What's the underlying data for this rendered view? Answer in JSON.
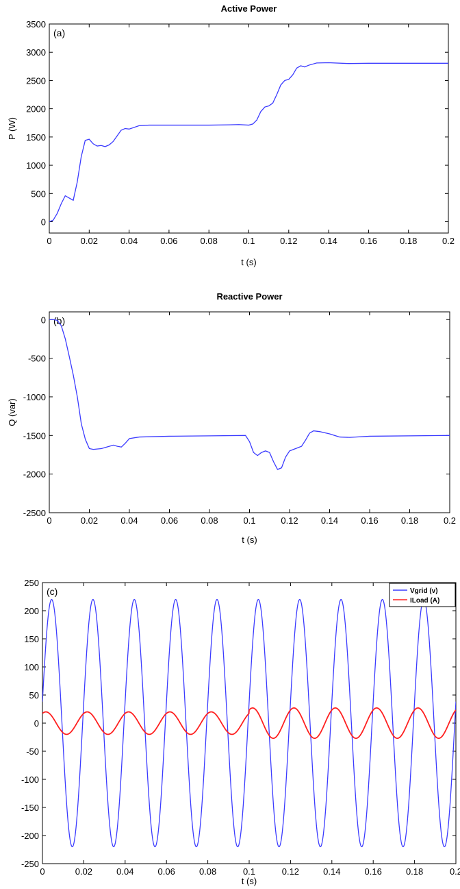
{
  "chart_data": [
    {
      "type": "line",
      "panel_label": "(a)",
      "title": "Active Power",
      "xlabel": "t (s)",
      "ylabel": "P (W)",
      "xlim": [
        0,
        0.2
      ],
      "ylim": [
        -200,
        3500
      ],
      "xticks": [
        0,
        0.02,
        0.04,
        0.06,
        0.08,
        0.1,
        0.12,
        0.14,
        0.16,
        0.18,
        0.2
      ],
      "yticks": [
        0,
        500,
        1000,
        1500,
        2000,
        2500,
        3000,
        3500
      ],
      "grid": false,
      "series": [
        {
          "color": "#3b3bff",
          "x": [
            0,
            0.002,
            0.004,
            0.006,
            0.008,
            0.01,
            0.012,
            0.014,
            0.016,
            0.018,
            0.02,
            0.022,
            0.024,
            0.026,
            0.028,
            0.03,
            0.032,
            0.034,
            0.036,
            0.038,
            0.04,
            0.045,
            0.05,
            0.06,
            0.08,
            0.09,
            0.095,
            0.1,
            0.102,
            0.104,
            0.106,
            0.108,
            0.11,
            0.112,
            0.114,
            0.116,
            0.118,
            0.12,
            0.122,
            0.124,
            0.126,
            0.128,
            0.13,
            0.134,
            0.14,
            0.15,
            0.16,
            0.2
          ],
          "y": [
            0,
            30,
            150,
            320,
            460,
            420,
            380,
            700,
            1150,
            1440,
            1460,
            1380,
            1340,
            1350,
            1330,
            1360,
            1420,
            1520,
            1620,
            1650,
            1640,
            1700,
            1710,
            1710,
            1710,
            1715,
            1720,
            1710,
            1730,
            1800,
            1950,
            2030,
            2050,
            2100,
            2250,
            2420,
            2500,
            2520,
            2600,
            2720,
            2760,
            2740,
            2770,
            2810,
            2815,
            2800,
            2805,
            2805
          ]
        }
      ]
    },
    {
      "type": "line",
      "panel_label": "(b)",
      "title": "Reactive Power",
      "xlabel": "t (s)",
      "ylabel": "Q (var)",
      "xlim": [
        0,
        0.2
      ],
      "ylim": [
        -2500,
        100
      ],
      "xticks": [
        0,
        0.02,
        0.04,
        0.06,
        0.08,
        0.1,
        0.12,
        0.14,
        0.16,
        0.18,
        0.2
      ],
      "yticks": [
        0,
        -500,
        -1000,
        -1500,
        -2000,
        -2500
      ],
      "grid": false,
      "series": [
        {
          "color": "#3b3bff",
          "x": [
            0,
            0.002,
            0.004,
            0.006,
            0.008,
            0.01,
            0.012,
            0.014,
            0.016,
            0.018,
            0.02,
            0.022,
            0.026,
            0.03,
            0.032,
            0.034,
            0.036,
            0.038,
            0.04,
            0.045,
            0.06,
            0.08,
            0.098,
            0.1,
            0.102,
            0.104,
            0.106,
            0.108,
            0.11,
            0.112,
            0.114,
            0.116,
            0.118,
            0.12,
            0.122,
            0.124,
            0.126,
            0.128,
            0.13,
            0.132,
            0.135,
            0.14,
            0.145,
            0.15,
            0.16,
            0.2
          ],
          "y": [
            0,
            0,
            -10,
            -80,
            -250,
            -480,
            -720,
            -1000,
            -1350,
            -1550,
            -1670,
            -1680,
            -1670,
            -1640,
            -1625,
            -1640,
            -1650,
            -1600,
            -1540,
            -1520,
            -1510,
            -1505,
            -1500,
            -1580,
            -1720,
            -1760,
            -1720,
            -1700,
            -1720,
            -1840,
            -1940,
            -1920,
            -1780,
            -1700,
            -1680,
            -1660,
            -1640,
            -1560,
            -1470,
            -1440,
            -1450,
            -1480,
            -1520,
            -1525,
            -1510,
            -1500
          ]
        }
      ]
    },
    {
      "type": "line",
      "panel_label": "(c)",
      "xlabel": "t (s)",
      "xlim": [
        0,
        0.2
      ],
      "ylim": [
        -250,
        250
      ],
      "xticks": [
        0,
        0.02,
        0.04,
        0.06,
        0.08,
        0.1,
        0.12,
        0.14,
        0.16,
        0.18,
        0.2
      ],
      "yticks": [
        250,
        200,
        150,
        100,
        50,
        0,
        -50,
        -100,
        -150,
        -200,
        -250
      ],
      "grid": false,
      "legend_position": "top-right",
      "series": [
        {
          "name": "Vgrid (v)",
          "color": "#3b3bff",
          "waveform": "sine",
          "amplitude": 220,
          "frequency_hz": 50,
          "phase_deg": 10
        },
        {
          "name": "ILoad (A)",
          "color": "#ff2020",
          "waveform": "sine",
          "amplitude_before_t_0_1": 20,
          "amplitude_after_t_0_1": 27,
          "frequency_hz": 50,
          "phase_deg": 60
        }
      ]
    }
  ]
}
